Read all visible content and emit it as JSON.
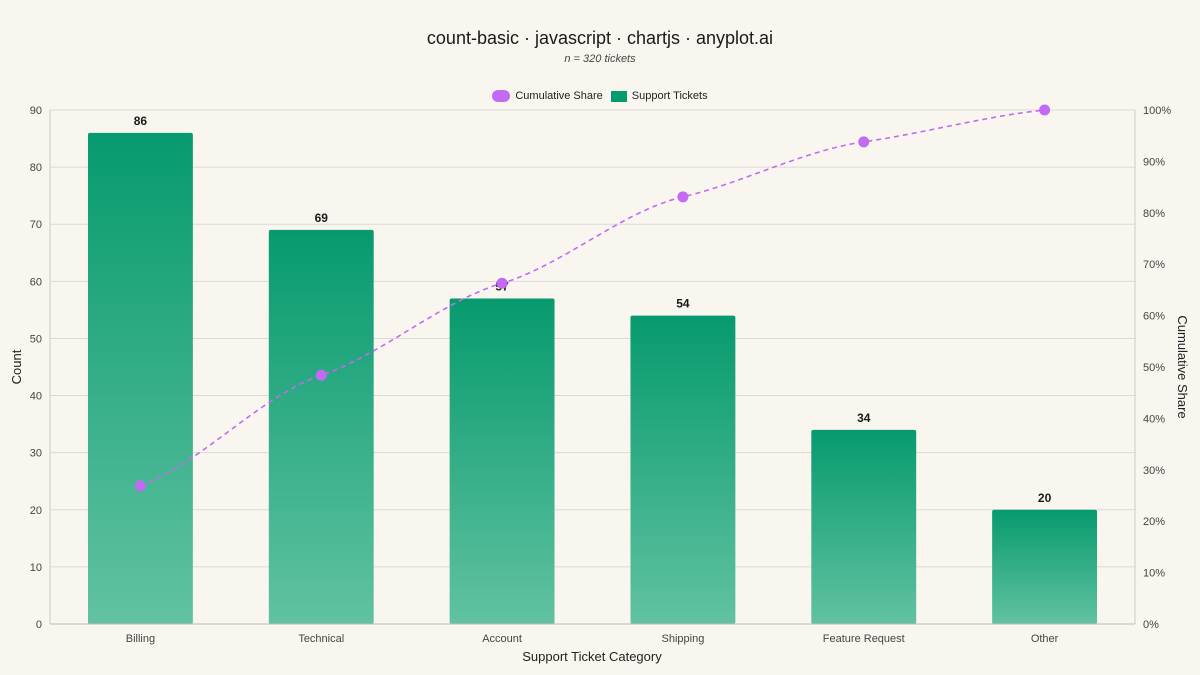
{
  "header": {
    "title": "count-basic · javascript · chartjs · anyplot.ai",
    "subtitle": "n = 320 tickets"
  },
  "legend": {
    "items": [
      {
        "label": "Cumulative Share",
        "color": "#C26BF2",
        "kind": "line"
      },
      {
        "label": "Support Tickets",
        "color": "#079A6E",
        "kind": "bar"
      }
    ]
  },
  "chart_data": {
    "type": "bar",
    "title": "count-basic · javascript · chartjs · anyplot.ai",
    "subtitle": "n = 320 tickets",
    "xlabel": "Support Ticket Category",
    "ylabel": "Count",
    "y2label": "Cumulative Share",
    "categories": [
      "Billing",
      "Technical",
      "Account",
      "Shipping",
      "Feature Request",
      "Other"
    ],
    "series": [
      {
        "name": "Support Tickets",
        "type": "bar",
        "values": [
          86,
          69,
          57,
          54,
          34,
          20
        ],
        "color_top": "#079A6E",
        "color_bottom": "#61C2A1"
      },
      {
        "name": "Cumulative Share",
        "type": "line",
        "axis": "right",
        "values": [
          26.9,
          48.4,
          66.3,
          83.1,
          93.8,
          100
        ],
        "color": "#C26BF2"
      }
    ],
    "ylim": [
      0,
      90
    ],
    "yticks": [
      0,
      10,
      20,
      30,
      40,
      50,
      60,
      70,
      80,
      90
    ],
    "y2lim": [
      0,
      100
    ],
    "y2ticks": [
      "0%",
      "10%",
      "20%",
      "30%",
      "40%",
      "50%",
      "60%",
      "70%",
      "80%",
      "90%",
      "100%"
    ],
    "grid": true,
    "legend_position": "top-center",
    "data_labels": true
  }
}
